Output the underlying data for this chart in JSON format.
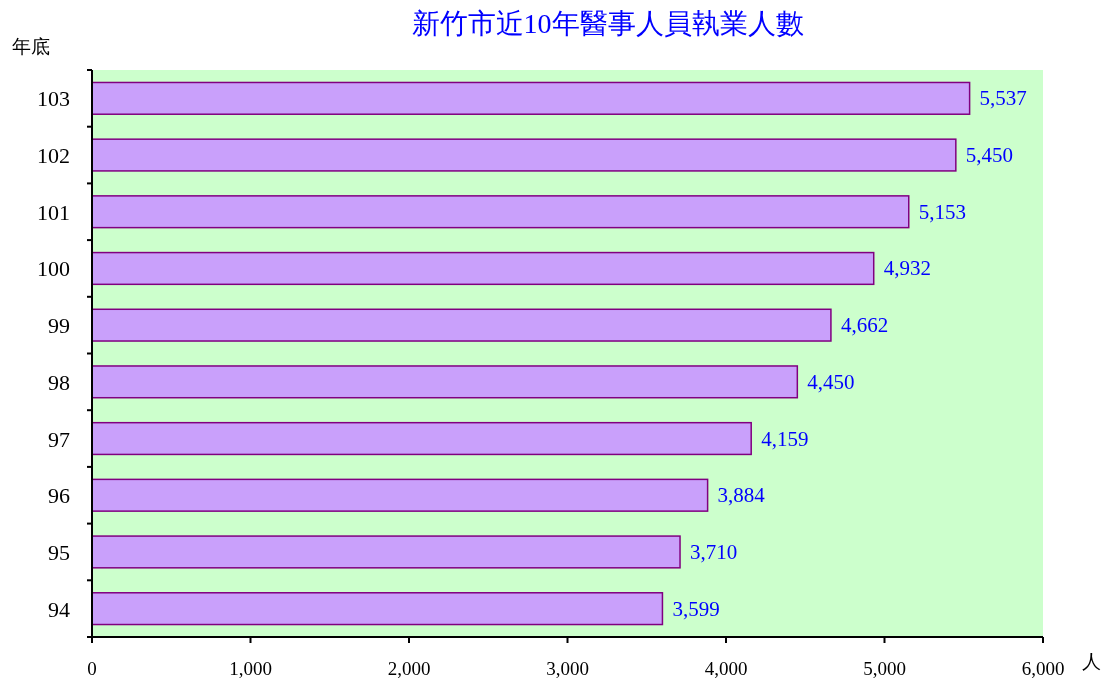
{
  "chart_data": {
    "type": "bar",
    "orientation": "horizontal",
    "title": "新竹市近10年醫事人員執業人數",
    "ylabel": "年底",
    "xlabel": "人",
    "categories": [
      "103",
      "102",
      "101",
      "100",
      "99",
      "98",
      "97",
      "96",
      "95",
      "94"
    ],
    "values": [
      5537,
      5450,
      5153,
      4932,
      4662,
      4450,
      4159,
      3884,
      3710,
      3599
    ],
    "color": "#c9a0fb",
    "xlim": [
      0,
      6000
    ],
    "xticks": [
      0,
      {
        "value": 1000,
        "label": "1,000"
      },
      {
        "value": 2000,
        "label": "2,000"
      },
      {
        "value": 3000,
        "label": "3,000"
      },
      {
        "value": 4000,
        "label": "4,000"
      },
      {
        "value": 5000,
        "label": "5,000"
      },
      {
        "value": 6000,
        "label": "6,000"
      }
    ],
    "value_labels": [
      "5,537",
      "5,450",
      "5,153",
      "4,932",
      "4,662",
      "4,450",
      "4,159",
      "3,884",
      "3,710",
      "3,599"
    ]
  }
}
